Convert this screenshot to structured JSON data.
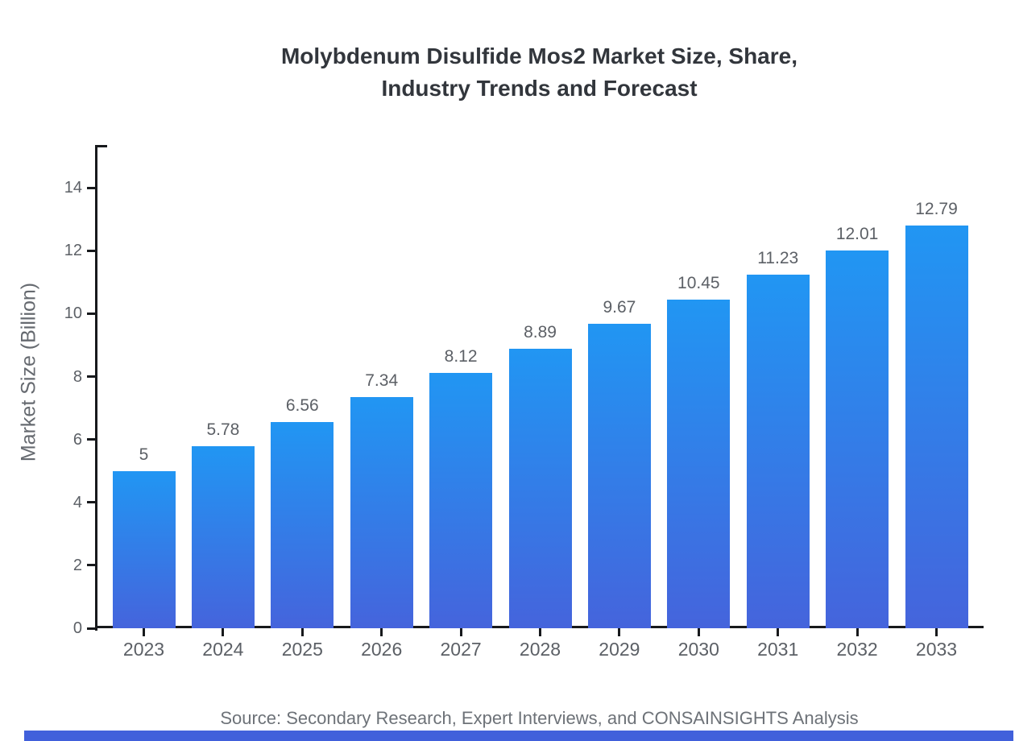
{
  "chart_data": {
    "type": "bar",
    "title": "Molybdenum Disulfide Mos2 Market Size, Share,\nIndustry Trends and Forecast",
    "categories": [
      "2023",
      "2024",
      "2025",
      "2026",
      "2027",
      "2028",
      "2029",
      "2030",
      "2031",
      "2032",
      "2033"
    ],
    "values": [
      5,
      5.78,
      6.56,
      7.34,
      8.12,
      8.89,
      9.67,
      10.45,
      11.23,
      12.01,
      12.79
    ],
    "value_labels": [
      "5",
      "5.78",
      "6.56",
      "7.34",
      "8.12",
      "8.89",
      "9.67",
      "10.45",
      "11.23",
      "12.01",
      "12.79"
    ],
    "xlabel": "",
    "ylabel": "Market Size (Billion)",
    "yticks": [
      0,
      2,
      4,
      6,
      8,
      10,
      12,
      14
    ],
    "ylim": [
      0,
      15.36
    ],
    "grid": false,
    "legend": "none",
    "source": "Source: Secondary Research, Expert Interviews, and CONSAINSIGHTS Analysis",
    "colors": {
      "bar_gradient_top": "#2196f3",
      "bar_gradient_bottom": "#4564dc",
      "axis": "#17191c",
      "tick_label": "#5c6066",
      "value_label": "#5c6066",
      "title": "#32363c",
      "axis_label": "#666a70",
      "source": "#6d7278",
      "footer_bar": "#4160db"
    }
  }
}
